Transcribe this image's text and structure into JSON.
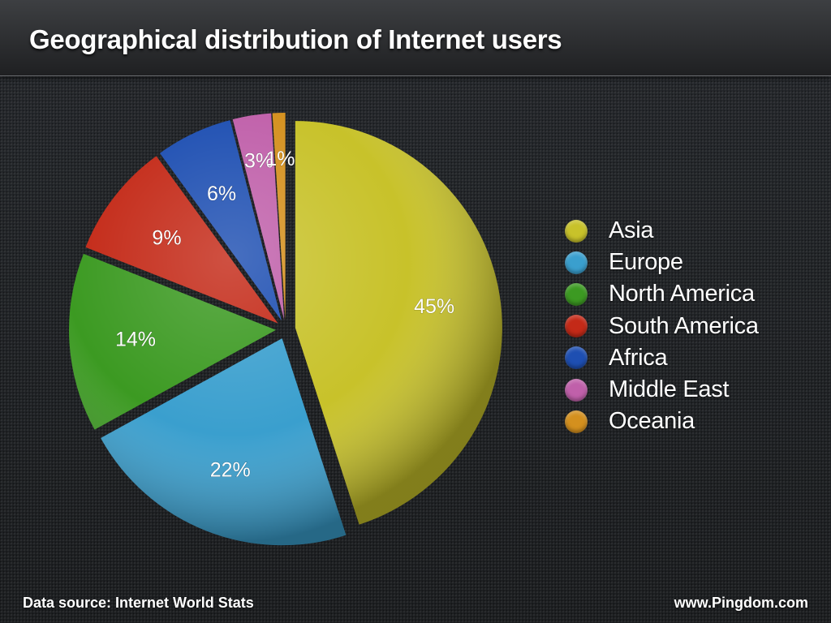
{
  "header": {
    "title": "Geographical distribution of Internet users"
  },
  "footer": {
    "source": "Data source: Internet World Stats",
    "site": "www.Pingdom.com"
  },
  "chart_data": {
    "type": "pie",
    "title": "Geographical distribution of Internet users",
    "legend_position": "right",
    "slices": [
      {
        "label": "Asia",
        "value": 45,
        "display": "45%",
        "color": "#c8c22a"
      },
      {
        "label": "Europe",
        "value": 22,
        "display": "22%",
        "color": "#3a9fce"
      },
      {
        "label": "North America",
        "value": 14,
        "display": "14%",
        "color": "#3c9a22"
      },
      {
        "label": "South America",
        "value": 9,
        "display": "9%",
        "color": "#c42a18"
      },
      {
        "label": "Africa",
        "value": 6,
        "display": "6%",
        "color": "#1e4fb2"
      },
      {
        "label": "Middle East",
        "value": 3,
        "display": "3%",
        "color": "#c060aa"
      },
      {
        "label": "Oceania",
        "value": 1,
        "display": "1%",
        "color": "#d4901e"
      }
    ]
  }
}
